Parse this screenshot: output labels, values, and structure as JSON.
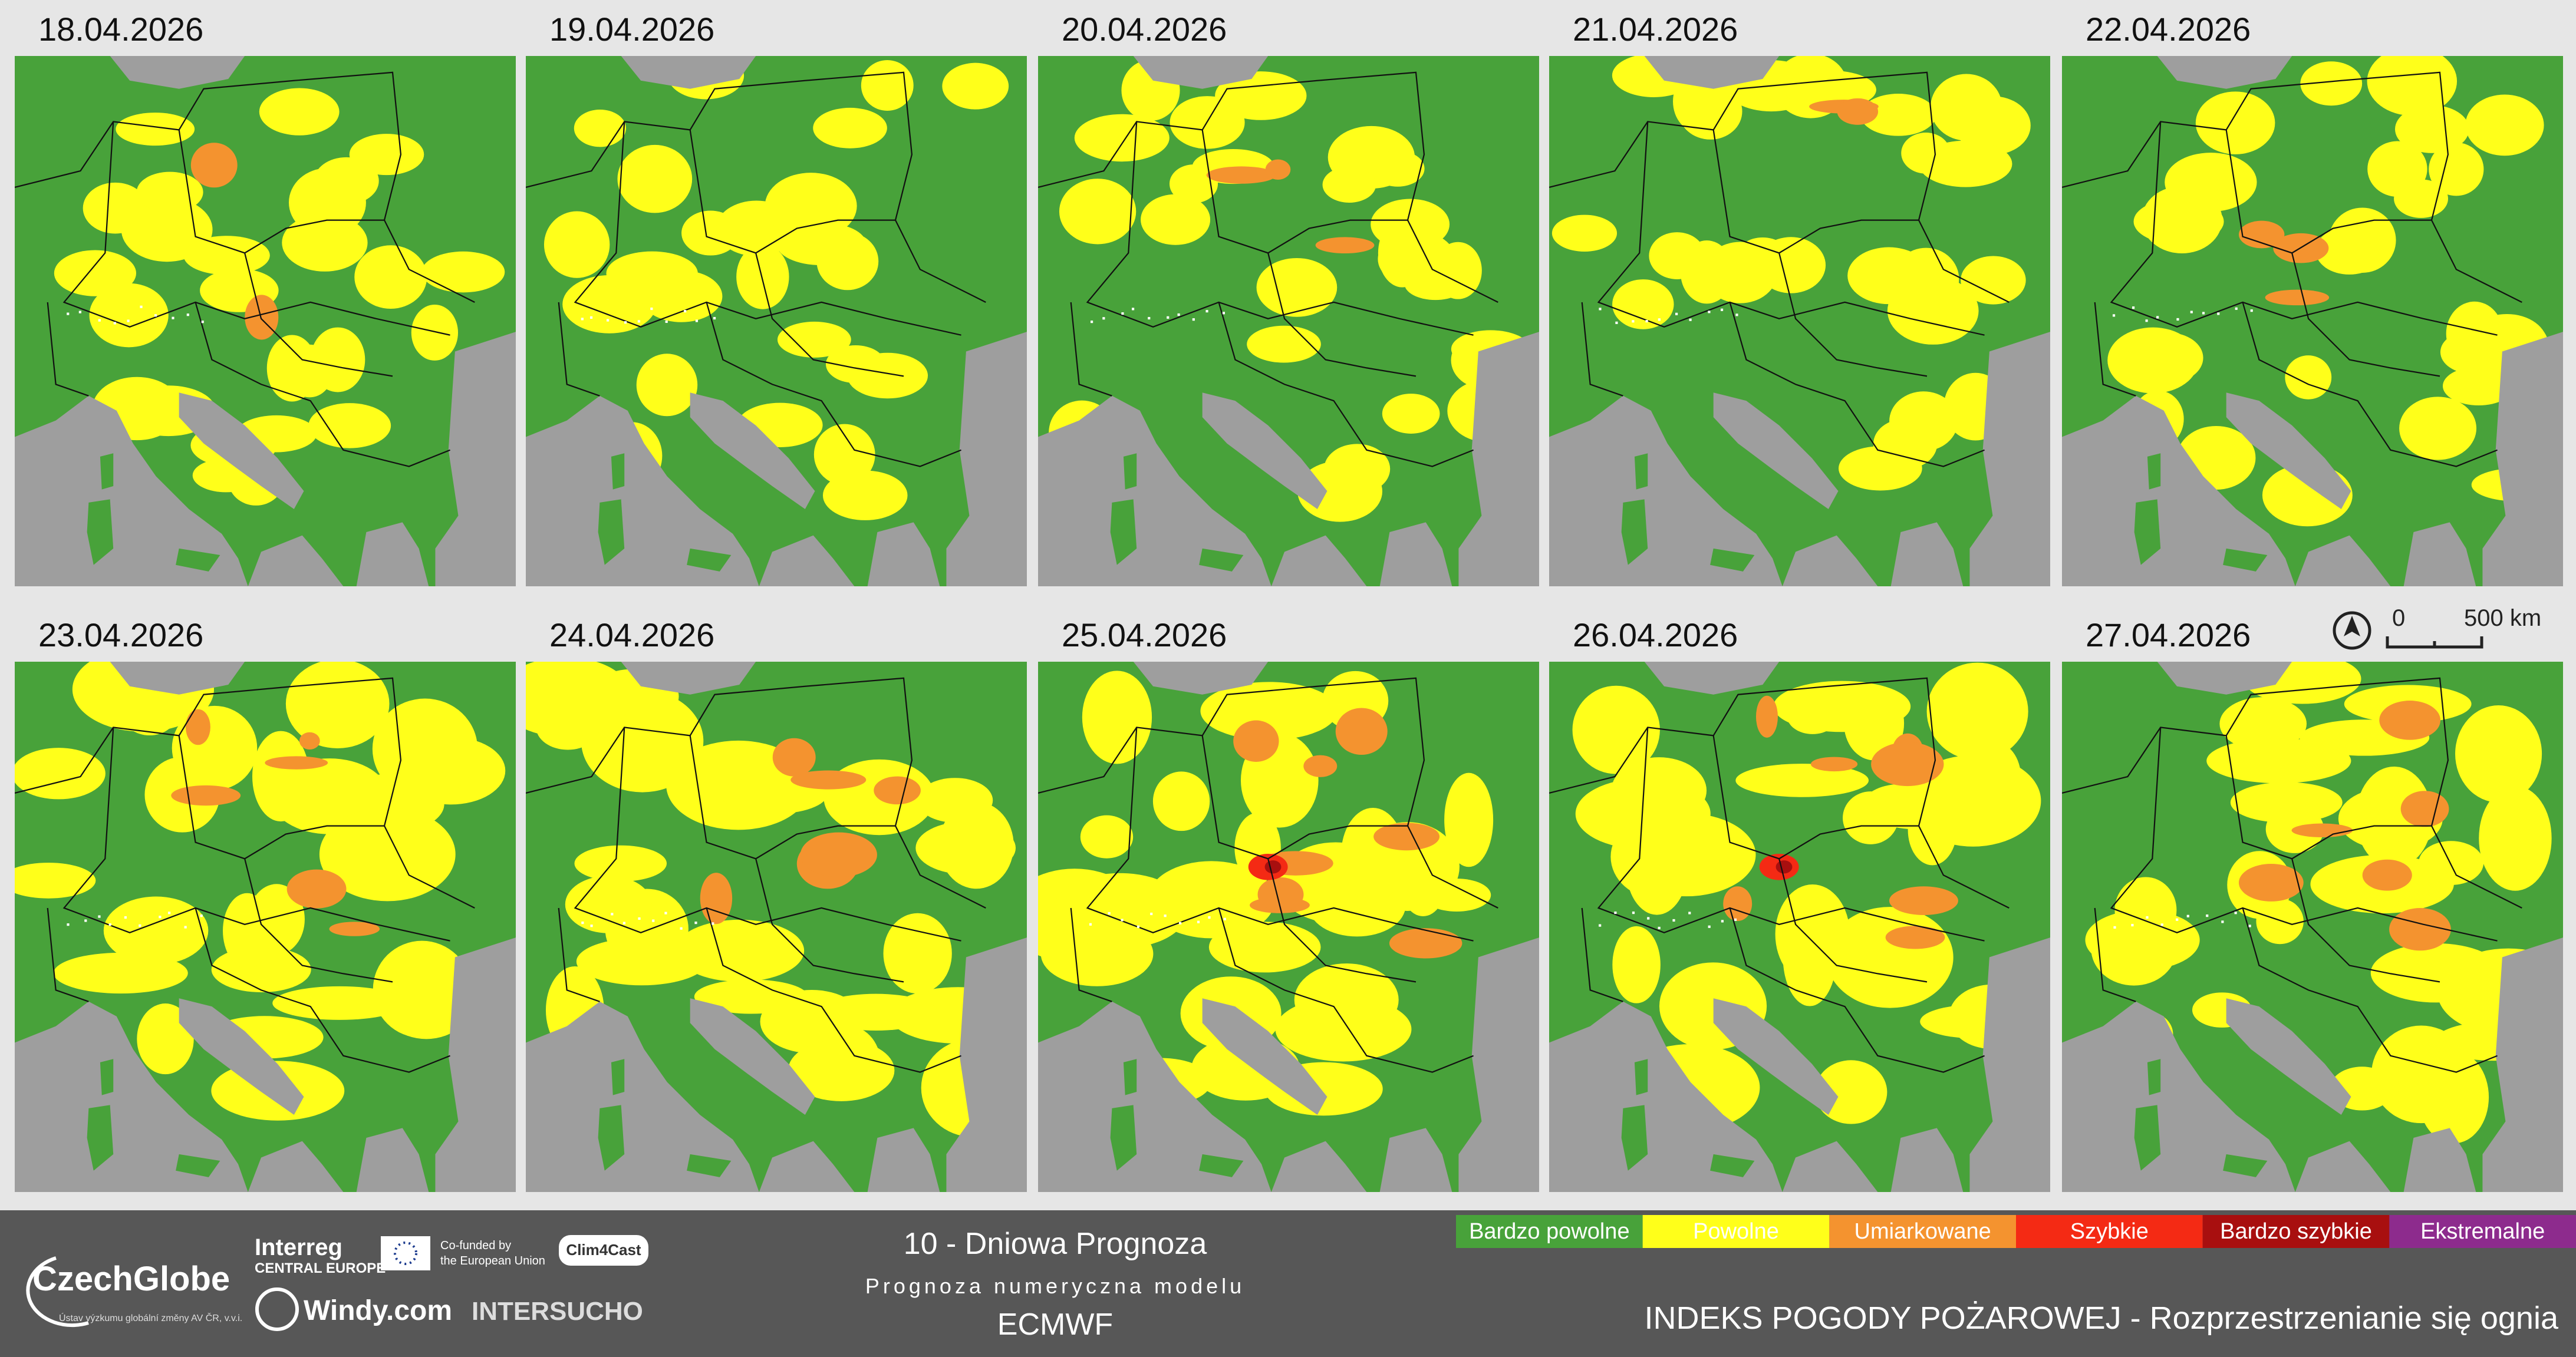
{
  "panels": [
    "18.04.2026",
    "19.04.2026",
    "20.04.2026",
    "21.04.2026",
    "22.04.2026",
    "23.04.2026",
    "24.04.2026",
    "25.04.2026",
    "26.04.2026",
    "27.04.2026"
  ],
  "scale_bar": {
    "start": "0",
    "end": "500 km"
  },
  "footer": {
    "czechglobe": {
      "name": "CzechGlobe",
      "subtitle": "Ústav výzkumu globální změny AV ČR, v.v.i."
    },
    "interreg": {
      "name": "Interreg",
      "region": "CENTRAL EUROPE"
    },
    "eu": [
      "Co-funded by",
      "the European Union"
    ],
    "clim4cast": "Clim4Cast",
    "windy": "Windy.com",
    "intersucho": "INTERSUCHO",
    "title": "10 - Dniowa Prognoza",
    "subtitle": "Prognoza numeryczna modelu",
    "model": "ECMWF",
    "index_title": "INDEKS POGODY POŻAROWEJ - Rozprzestrzenianie się ognia"
  },
  "legend": [
    {
      "label": "Bardzo powolne",
      "color": "#48a23a"
    },
    {
      "label": "Powolne",
      "color": "#ffff1a"
    },
    {
      "label": "Umiarkowane",
      "color": "#f4932f"
    },
    {
      "label": "Szybkie",
      "color": "#f42a14"
    },
    {
      "label": "Bardzo szybkie",
      "color": "#a80f0f"
    },
    {
      "label": "Ekstremalne",
      "color": "#8d2b8d"
    }
  ]
}
